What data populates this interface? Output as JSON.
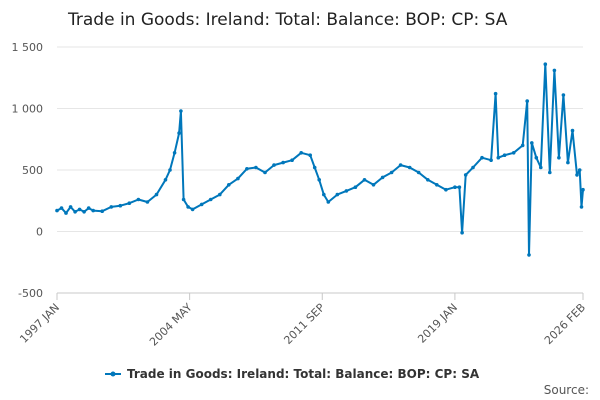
{
  "chart_data": {
    "type": "line",
    "title": "Trade in Goods: Ireland: Total: Balance: BOP: CP: SA",
    "xlabel": "",
    "ylabel": "",
    "ylim": [
      -500,
      1500
    ],
    "yticks": [
      -500,
      0,
      500,
      1000,
      1500
    ],
    "ytick_labels": [
      "-500",
      "0",
      "500",
      "1 000",
      "1 500"
    ],
    "xlim": [
      1997.0,
      2026.083
    ],
    "xticks": [
      1997.0,
      2004.333,
      2011.667,
      2019.0,
      2026.083
    ],
    "xtick_labels": [
      "1997 JAN",
      "2004 MAY",
      "2011 SEP",
      "2019 JAN",
      "2026 FEB"
    ],
    "legend_position": "bottom-center",
    "credit": "Source:",
    "color": "#0077bb",
    "series": [
      {
        "name": "Trade in Goods: Ireland: Total: Balance: BOP: CP: SA",
        "points": [
          [
            1997.0,
            170
          ],
          [
            1997.25,
            190
          ],
          [
            1997.5,
            150
          ],
          [
            1997.75,
            200
          ],
          [
            1998.0,
            160
          ],
          [
            1998.25,
            180
          ],
          [
            1998.5,
            160
          ],
          [
            1998.75,
            190
          ],
          [
            1999.0,
            170
          ],
          [
            1999.5,
            165
          ],
          [
            2000.0,
            200
          ],
          [
            2000.5,
            210
          ],
          [
            2001.0,
            230
          ],
          [
            2001.5,
            260
          ],
          [
            2002.0,
            240
          ],
          [
            2002.5,
            300
          ],
          [
            2003.0,
            420
          ],
          [
            2003.25,
            500
          ],
          [
            2003.5,
            640
          ],
          [
            2003.75,
            800
          ],
          [
            2003.85,
            980
          ],
          [
            2004.0,
            260
          ],
          [
            2004.25,
            200
          ],
          [
            2004.5,
            180
          ],
          [
            2005.0,
            220
          ],
          [
            2005.5,
            260
          ],
          [
            2006.0,
            300
          ],
          [
            2006.5,
            380
          ],
          [
            2007.0,
            430
          ],
          [
            2007.5,
            510
          ],
          [
            2008.0,
            520
          ],
          [
            2008.5,
            480
          ],
          [
            2009.0,
            540
          ],
          [
            2009.5,
            560
          ],
          [
            2010.0,
            580
          ],
          [
            2010.5,
            640
          ],
          [
            2011.0,
            620
          ],
          [
            2011.25,
            520
          ],
          [
            2011.5,
            420
          ],
          [
            2011.75,
            300
          ],
          [
            2012.0,
            240
          ],
          [
            2012.5,
            300
          ],
          [
            2013.0,
            330
          ],
          [
            2013.5,
            360
          ],
          [
            2014.0,
            420
          ],
          [
            2014.5,
            380
          ],
          [
            2015.0,
            440
          ],
          [
            2015.5,
            480
          ],
          [
            2016.0,
            540
          ],
          [
            2016.5,
            520
          ],
          [
            2017.0,
            480
          ],
          [
            2017.5,
            420
          ],
          [
            2018.0,
            380
          ],
          [
            2018.5,
            340
          ],
          [
            2019.0,
            360
          ],
          [
            2019.25,
            360
          ],
          [
            2019.4,
            -10
          ],
          [
            2019.6,
            460
          ],
          [
            2020.0,
            520
          ],
          [
            2020.5,
            600
          ],
          [
            2021.0,
            580
          ],
          [
            2021.25,
            1120
          ],
          [
            2021.4,
            600
          ],
          [
            2021.75,
            620
          ],
          [
            2022.25,
            640
          ],
          [
            2022.75,
            700
          ],
          [
            2023.0,
            1060
          ],
          [
            2023.1,
            -190
          ],
          [
            2023.25,
            720
          ],
          [
            2023.5,
            600
          ],
          [
            2023.75,
            520
          ],
          [
            2024.0,
            1360
          ],
          [
            2024.25,
            480
          ],
          [
            2024.5,
            1310
          ],
          [
            2024.75,
            600
          ],
          [
            2025.0,
            1110
          ],
          [
            2025.25,
            560
          ],
          [
            2025.5,
            820
          ],
          [
            2025.75,
            460
          ],
          [
            2025.9,
            500
          ],
          [
            2026.0,
            200
          ],
          [
            2026.083,
            340
          ]
        ]
      }
    ]
  }
}
